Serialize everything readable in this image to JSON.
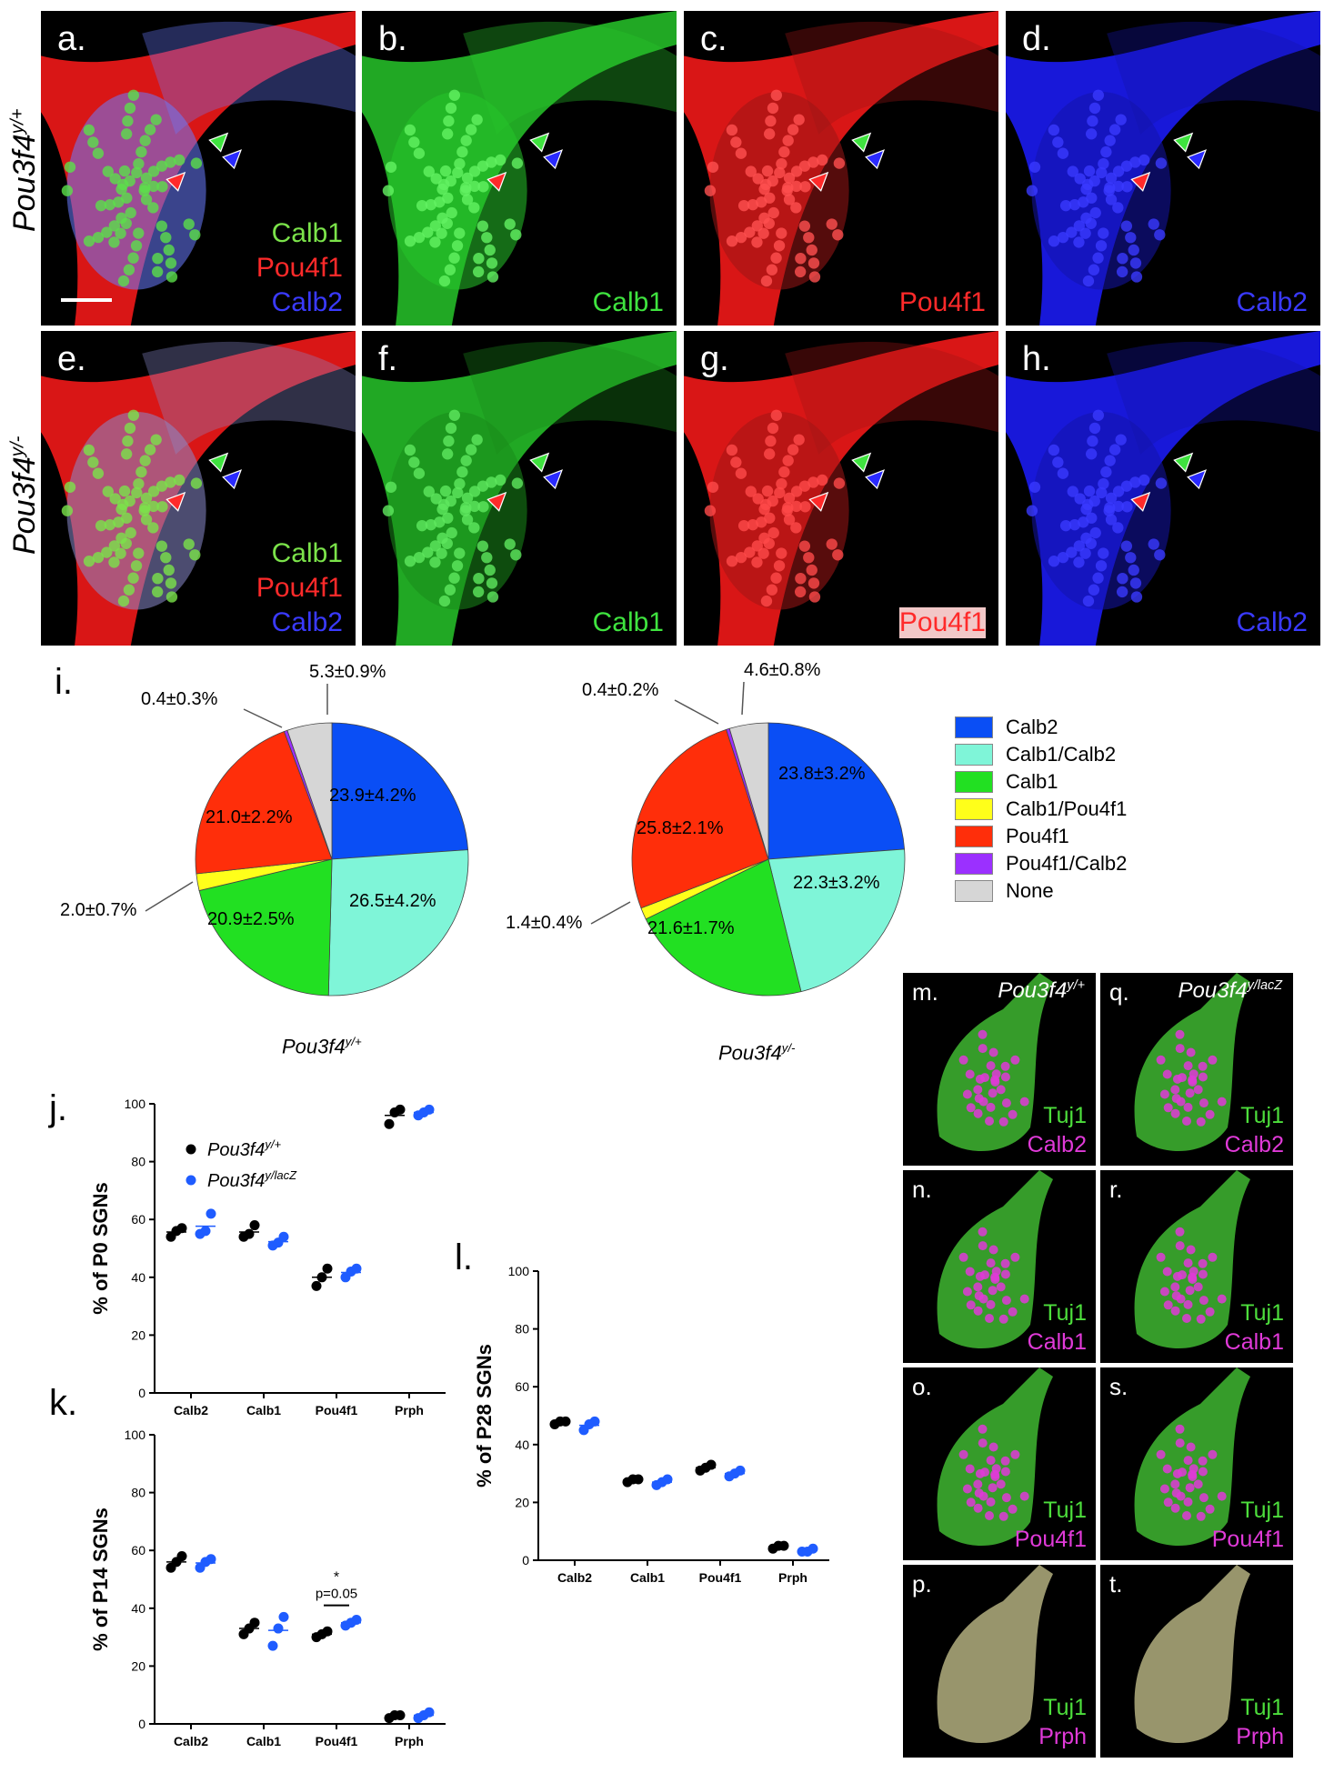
{
  "rows": {
    "top_genotype": {
      "base": "Pou3f4",
      "sup": "y/+"
    },
    "bottom_genotype": {
      "base": "Pou3f4",
      "sup": "y/-"
    }
  },
  "top_panels": [
    {
      "label": "a.",
      "stains": [
        {
          "text": "Calb1",
          "color": "#7be34a"
        },
        {
          "text": "Pou4f1",
          "color": "#ff2a2a"
        },
        {
          "text": "Calb2",
          "color": "#3a3aff"
        }
      ]
    },
    {
      "label": "b.",
      "stains": [
        {
          "text": "Calb1",
          "color": "#3fe33f"
        }
      ]
    },
    {
      "label": "c.",
      "stains": [
        {
          "text": "Pou4f1",
          "color": "#ff2a2a"
        }
      ]
    },
    {
      "label": "d.",
      "stains": [
        {
          "text": "Calb2",
          "color": "#3a3aff"
        }
      ]
    }
  ],
  "bottom_panels": [
    {
      "label": "e.",
      "stains": [
        {
          "text": "Calb1",
          "color": "#7be34a"
        },
        {
          "text": "Pou4f1",
          "color": "#ff2a2a"
        },
        {
          "text": "Calb2",
          "color": "#3a3aff"
        }
      ]
    },
    {
      "label": "f.",
      "stains": [
        {
          "text": "Calb1",
          "color": "#3fe33f"
        }
      ]
    },
    {
      "label": "g.",
      "stains": [
        {
          "text": "Pou4f1",
          "color": "#ff2a2a"
        }
      ]
    },
    {
      "label": "h.",
      "stains": [
        {
          "text": "Calb2",
          "color": "#3a3aff"
        }
      ]
    }
  ],
  "pie_section": {
    "label": "i.",
    "legend": [
      {
        "name": "Calb2",
        "color": "#0a4ef5"
      },
      {
        "name": "Calb1/Calb2",
        "color": "#7ff5d8"
      },
      {
        "name": "Calb1",
        "color": "#22e022"
      },
      {
        "name": "Calb1/Pou4f1",
        "color": "#ffff1a"
      },
      {
        "name": "Pou4f1",
        "color": "#ff2e0a"
      },
      {
        "name": "Pou4f1/Calb2",
        "color": "#9b30ff"
      },
      {
        "name": "None",
        "color": "#d6d6d6"
      }
    ],
    "genotype_left": {
      "base": "Pou3f4",
      "sup": "y/+"
    },
    "genotype_right": {
      "base": "Pou3f4",
      "sup": "y/-"
    },
    "pie_left_labels": {
      "calb2": "23.9±4.2%",
      "calb1_calb2": "26.5±4.2%",
      "calb1": "20.9±2.5%",
      "calb1_pou4f1": "2.0±0.7%",
      "pou4f1": "21.0±2.2%",
      "pou4f1_calb2": "0.4±0.3%",
      "none": "5.3±0.9%"
    },
    "pie_right_labels": {
      "calb2": "23.8±3.2%",
      "calb1_calb2": "22.3±3.2%",
      "calb1": "21.6±1.7%",
      "calb1_pou4f1": "1.4±0.4%",
      "pou4f1": "25.8±2.1%",
      "pou4f1_calb2": "0.4±0.2%",
      "none": "4.6±0.8%"
    }
  },
  "chart_data": [
    {
      "type": "pie",
      "title": "",
      "categories": [
        "Calb2",
        "Calb1/Calb2",
        "Calb1",
        "Calb1/Pou4f1",
        "Pou4f1",
        "Pou4f1/Calb2",
        "None"
      ],
      "values": [
        23.9,
        26.5,
        20.9,
        2.0,
        21.0,
        0.4,
        5.3
      ],
      "errors": [
        4.2,
        4.2,
        2.5,
        0.7,
        2.2,
        0.3,
        0.9
      ],
      "colors": [
        "#0a4ef5",
        "#7ff5d8",
        "#22e022",
        "#ffff1a",
        "#ff2e0a",
        "#9b30ff",
        "#d6d6d6"
      ]
    },
    {
      "type": "pie",
      "title": "",
      "categories": [
        "Calb2",
        "Calb1/Calb2",
        "Calb1",
        "Calb1/Pou4f1",
        "Pou4f1",
        "Pou4f1/Calb2",
        "None"
      ],
      "values": [
        23.8,
        22.3,
        21.6,
        1.4,
        25.8,
        0.4,
        4.6
      ],
      "errors": [
        3.2,
        3.2,
        1.7,
        0.4,
        2.1,
        0.2,
        0.8
      ],
      "colors": [
        "#0a4ef5",
        "#7ff5d8",
        "#22e022",
        "#ffff1a",
        "#ff2e0a",
        "#9b30ff",
        "#d6d6d6"
      ]
    },
    {
      "type": "scatter",
      "label": "j.",
      "ylabel": "% of P0 SGNs",
      "ylim": [
        0,
        100
      ],
      "yticks": [
        "0",
        "20",
        "40",
        "60",
        "80",
        "100"
      ],
      "categories": [
        "Calb2",
        "Calb1",
        "Pou4f1",
        "Prph"
      ],
      "legend": [
        {
          "name": "Pou3f4",
          "sup": "y/+",
          "color": "#000000"
        },
        {
          "name": "Pou3f4",
          "sup": "y/lacZ",
          "color": "#1f5cff"
        }
      ],
      "series": [
        {
          "name": "Pou3f4 y/+",
          "color": "#000000",
          "points": [
            [
              54,
              56,
              57
            ],
            [
              54,
              55,
              58
            ],
            [
              37,
              40,
              43
            ],
            [
              93,
              97,
              98
            ]
          ]
        },
        {
          "name": "Pou3f4 y/lacZ",
          "color": "#1f5cff",
          "points": [
            [
              55,
              56,
              62
            ],
            [
              51,
              52,
              54
            ],
            [
              40,
              42,
              43
            ],
            [
              96,
              97,
              98
            ]
          ]
        }
      ]
    },
    {
      "type": "scatter",
      "label": "k.",
      "ylabel": "% of P14 SGNs",
      "ylim": [
        0,
        100
      ],
      "yticks": [
        "0",
        "20",
        "40",
        "60",
        "80",
        "100"
      ],
      "categories": [
        "Calb2",
        "Calb1",
        "Pou4f1",
        "Prph"
      ],
      "annotation": {
        "star": "*",
        "text": "p=0.05"
      },
      "series": [
        {
          "name": "Pou3f4 y/+",
          "color": "#000000",
          "points": [
            [
              54,
              56,
              58
            ],
            [
              31,
              33,
              35
            ],
            [
              30,
              31,
              32
            ],
            [
              2,
              3,
              3
            ]
          ]
        },
        {
          "name": "Pou3f4 y/lacZ",
          "color": "#1f5cff",
          "points": [
            [
              54,
              56,
              57
            ],
            [
              27,
              33,
              37
            ],
            [
              34,
              35,
              36
            ],
            [
              2,
              3,
              4
            ]
          ]
        }
      ]
    },
    {
      "type": "scatter",
      "label": "l.",
      "ylabel": "% of P28 SGNs",
      "ylim": [
        0,
        100
      ],
      "yticks": [
        "0",
        "20",
        "40",
        "60",
        "80",
        "100"
      ],
      "categories": [
        "Calb2",
        "Calb1",
        "Pou4f1",
        "Prph"
      ],
      "series": [
        {
          "name": "Pou3f4 y/+",
          "color": "#000000",
          "points": [
            [
              47,
              48,
              48
            ],
            [
              27,
              28,
              28
            ],
            [
              31,
              32,
              33
            ],
            [
              4,
              5,
              5
            ]
          ]
        },
        {
          "name": "Pou3f4 y/lacZ",
          "color": "#1f5cff",
          "points": [
            [
              45,
              47,
              48
            ],
            [
              26,
              27,
              28
            ],
            [
              29,
              30,
              31
            ],
            [
              3,
              3,
              4
            ]
          ]
        }
      ]
    }
  ],
  "mini_panels": {
    "geno_left": {
      "base": "Pou3f4",
      "sup": "y/+"
    },
    "geno_right": {
      "base": "Pou3f4",
      "sup": "y/lacZ"
    },
    "tuj1": "Tuj1",
    "left": [
      {
        "label": "m.",
        "marker": "Calb2"
      },
      {
        "label": "n.",
        "marker": "Calb1"
      },
      {
        "label": "o.",
        "marker": "Pou4f1"
      },
      {
        "label": "p.",
        "marker": "Prph"
      }
    ],
    "right": [
      {
        "label": "q.",
        "marker": "Calb2"
      },
      {
        "label": "r.",
        "marker": "Calb1"
      },
      {
        "label": "s.",
        "marker": "Pou4f1"
      },
      {
        "label": "t.",
        "marker": "Prph"
      }
    ],
    "tuj1_color": "#4dde3c",
    "marker_color": "#e03ad8"
  }
}
